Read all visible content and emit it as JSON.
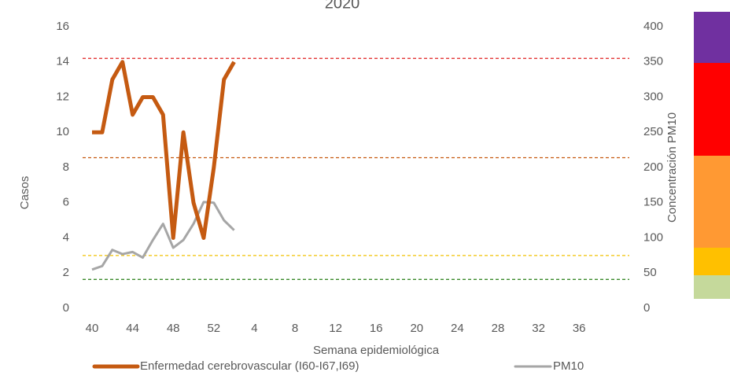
{
  "chart_data": {
    "type": "line",
    "title": "2020",
    "x_label": "Semana epidemiológica",
    "y_label": "Casos",
    "y2_label": "Concentración PM10",
    "categories": [
      "40",
      null,
      null,
      null,
      "44",
      null,
      null,
      null,
      "48",
      null,
      null,
      null,
      "52",
      null,
      null,
      null,
      "4",
      null,
      null,
      null,
      "8",
      null,
      null,
      null,
      "12",
      null,
      null,
      null,
      "16",
      null,
      null,
      null,
      "20",
      null,
      null,
      null,
      "24",
      null,
      null,
      null,
      "28",
      null,
      null,
      null,
      "32",
      null,
      null,
      null,
      "36",
      null,
      null,
      null
    ],
    "series": [
      {
        "name": "Enfermedad cerebrovascular (I60-I67,I69)",
        "color": "#c55a11",
        "width": 5,
        "values": [
          10,
          10,
          13,
          14,
          11,
          12,
          12,
          11,
          4,
          10,
          6,
          4,
          8,
          13,
          14,
          null,
          null,
          null,
          null,
          null,
          null,
          null,
          null,
          null,
          null,
          null,
          null,
          null,
          null,
          null,
          null,
          null,
          null,
          null,
          null,
          null,
          null,
          null,
          null,
          null,
          null,
          null,
          null,
          null,
          null,
          null,
          null,
          null,
          null,
          null,
          null,
          null
        ]
      },
      {
        "name": "PM10",
        "color": "#a6a6a6",
        "width": 3,
        "axis": "y2",
        "values": [
          55,
          60,
          83,
          77,
          80,
          72,
          97,
          120,
          86,
          97,
          120,
          151,
          150,
          125,
          111,
          null,
          null,
          null,
          null,
          null,
          null,
          null,
          null,
          null,
          null,
          null,
          null,
          null,
          null,
          null,
          null,
          null,
          null,
          null,
          null,
          null,
          null,
          null,
          null,
          null,
          null,
          null,
          null,
          null,
          null,
          null,
          null,
          null,
          null,
          null,
          null,
          null
        ]
      }
    ],
    "reference_lines": [
      {
        "value": 355,
        "color": "#e02020"
      },
      {
        "value": 214,
        "color": "#c55a11"
      },
      {
        "value": 75,
        "color": "#f0c000"
      },
      {
        "value": 41,
        "color": "#3a8a2a"
      }
    ],
    "ylim": [
      0,
      16
    ],
    "yticks": [
      0,
      2,
      4,
      6,
      8,
      10,
      12,
      14,
      16
    ],
    "y2lim": [
      0,
      400
    ],
    "y2ticks": [
      0,
      50,
      100,
      150,
      200,
      250,
      300,
      350,
      400
    ]
  }
}
